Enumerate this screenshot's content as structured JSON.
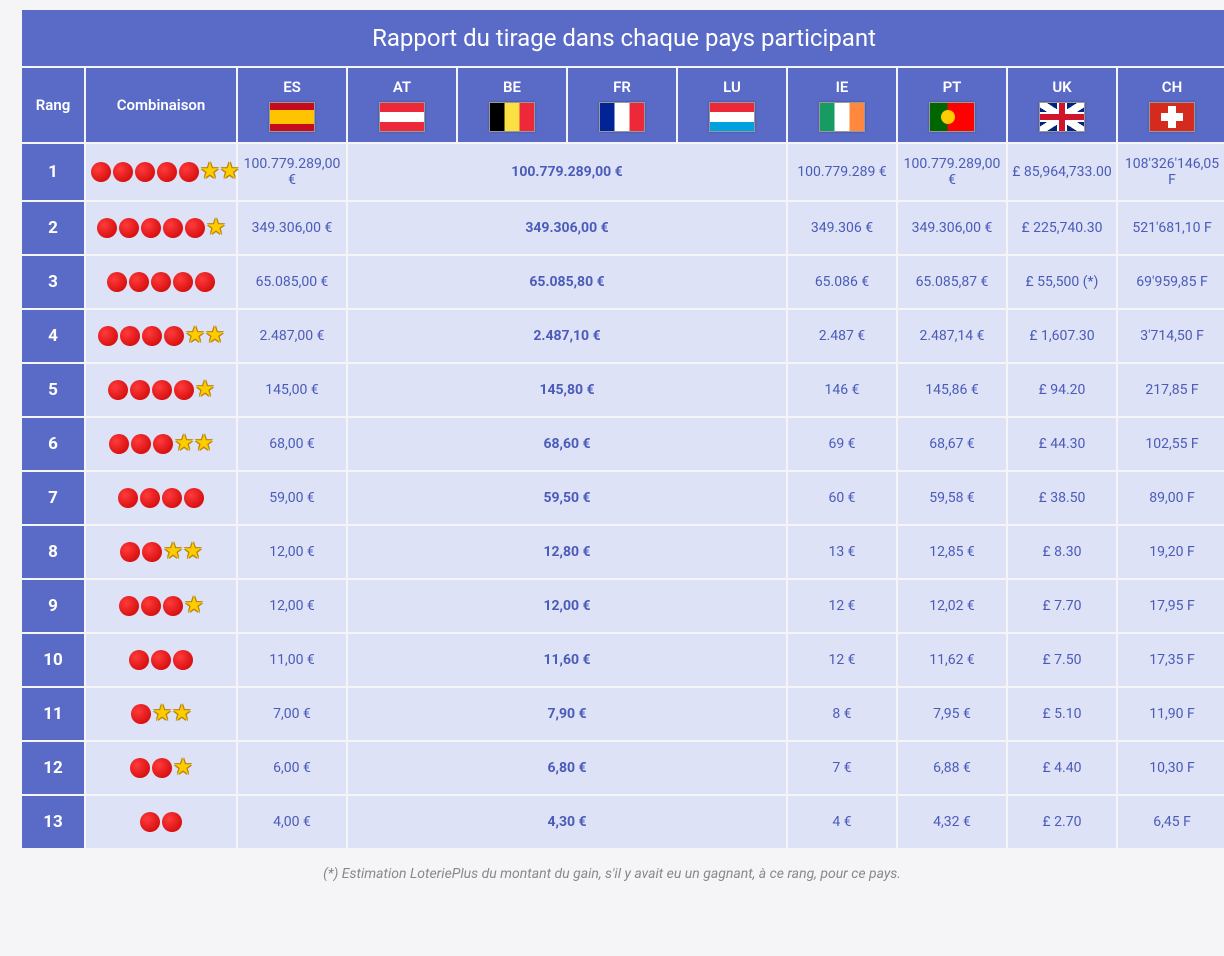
{
  "title": "Rapport du tirage dans chaque pays participant",
  "headers": {
    "rank": "Rang",
    "combo": "Combinaison",
    "countries": [
      {
        "code": "ES",
        "flag": "es"
      },
      {
        "code": "AT",
        "flag": "at"
      },
      {
        "code": "BE",
        "flag": "be"
      },
      {
        "code": "FR",
        "flag": "fr"
      },
      {
        "code": "LU",
        "flag": "lu"
      },
      {
        "code": "IE",
        "flag": "ie"
      },
      {
        "code": "PT",
        "flag": "pt"
      },
      {
        "code": "UK",
        "flag": "uk"
      },
      {
        "code": "CH",
        "flag": "ch"
      }
    ]
  },
  "combo_icons": {
    "ball": "●",
    "star": "★"
  },
  "rows": [
    {
      "rank": "1",
      "balls": 5,
      "stars": 2,
      "es": "100.779.289,00 €",
      "merged": "100.779.289,00 €",
      "ie": "100.779.289 €",
      "pt": "100.779.289,00 €",
      "uk": "£ 85,964,733.00",
      "ch": "108'326'146,05 F"
    },
    {
      "rank": "2",
      "balls": 5,
      "stars": 1,
      "es": "349.306,00 €",
      "merged": "349.306,00 €",
      "ie": "349.306 €",
      "pt": "349.306,00 €",
      "uk": "£ 225,740.30",
      "ch": "521'681,10 F"
    },
    {
      "rank": "3",
      "balls": 5,
      "stars": 0,
      "es": "65.085,00 €",
      "merged": "65.085,80 €",
      "ie": "65.086 €",
      "pt": "65.085,87 €",
      "uk": "£ 55,500 (*)",
      "ch": "69'959,85 F"
    },
    {
      "rank": "4",
      "balls": 4,
      "stars": 2,
      "es": "2.487,00 €",
      "merged": "2.487,10 €",
      "ie": "2.487 €",
      "pt": "2.487,14 €",
      "uk": "£ 1,607.30",
      "ch": "3'714,50 F"
    },
    {
      "rank": "5",
      "balls": 4,
      "stars": 1,
      "es": "145,00 €",
      "merged": "145,80 €",
      "ie": "146 €",
      "pt": "145,86 €",
      "uk": "£ 94.20",
      "ch": "217,85 F"
    },
    {
      "rank": "6",
      "balls": 3,
      "stars": 2,
      "es": "68,00 €",
      "merged": "68,60 €",
      "ie": "69 €",
      "pt": "68,67 €",
      "uk": "£ 44.30",
      "ch": "102,55 F"
    },
    {
      "rank": "7",
      "balls": 4,
      "stars": 0,
      "es": "59,00 €",
      "merged": "59,50 €",
      "ie": "60 €",
      "pt": "59,58 €",
      "uk": "£ 38.50",
      "ch": "89,00 F"
    },
    {
      "rank": "8",
      "balls": 2,
      "stars": 2,
      "es": "12,00 €",
      "merged": "12,80 €",
      "ie": "13 €",
      "pt": "12,85 €",
      "uk": "£ 8.30",
      "ch": "19,20 F"
    },
    {
      "rank": "9",
      "balls": 3,
      "stars": 1,
      "es": "12,00 €",
      "merged": "12,00 €",
      "ie": "12 €",
      "pt": "12,02 €",
      "uk": "£ 7.70",
      "ch": "17,95 F"
    },
    {
      "rank": "10",
      "balls": 3,
      "stars": 0,
      "es": "11,00 €",
      "merged": "11,60 €",
      "ie": "12 €",
      "pt": "11,62 €",
      "uk": "£ 7.50",
      "ch": "17,35 F"
    },
    {
      "rank": "11",
      "balls": 1,
      "stars": 2,
      "es": "7,00 €",
      "merged": "7,90 €",
      "ie": "8 €",
      "pt": "7,95 €",
      "uk": "£ 5.10",
      "ch": "11,90 F"
    },
    {
      "rank": "12",
      "balls": 2,
      "stars": 1,
      "es": "6,00 €",
      "merged": "6,80 €",
      "ie": "7 €",
      "pt": "6,88 €",
      "uk": "£ 4.40",
      "ch": "10,30 F"
    },
    {
      "rank": "13",
      "balls": 2,
      "stars": 0,
      "es": "4,00 €",
      "merged": "4,30 €",
      "ie": "4 €",
      "pt": "4,32 €",
      "uk": "£ 2.70",
      "ch": "6,45 F"
    }
  ],
  "footnote": "(*) Estimation LoteriePlus du montant du gain, s'il y avait eu un gagnant, à ce rang, pour ce pays.",
  "styling": {
    "header_bg": "#5a6bc7",
    "header_text": "#ffffff",
    "cell_bg": "#dde2f7",
    "value_text": "#4a5bb8",
    "ball_color": "#c90000",
    "star_color": "#ffcc00",
    "merged_columns": [
      "AT",
      "BE",
      "FR",
      "LU"
    ],
    "merged_bold": true,
    "title_fontsize": 24,
    "rank_fontsize": 17,
    "value_fontsize": 14,
    "footnote_color": "#888888"
  }
}
